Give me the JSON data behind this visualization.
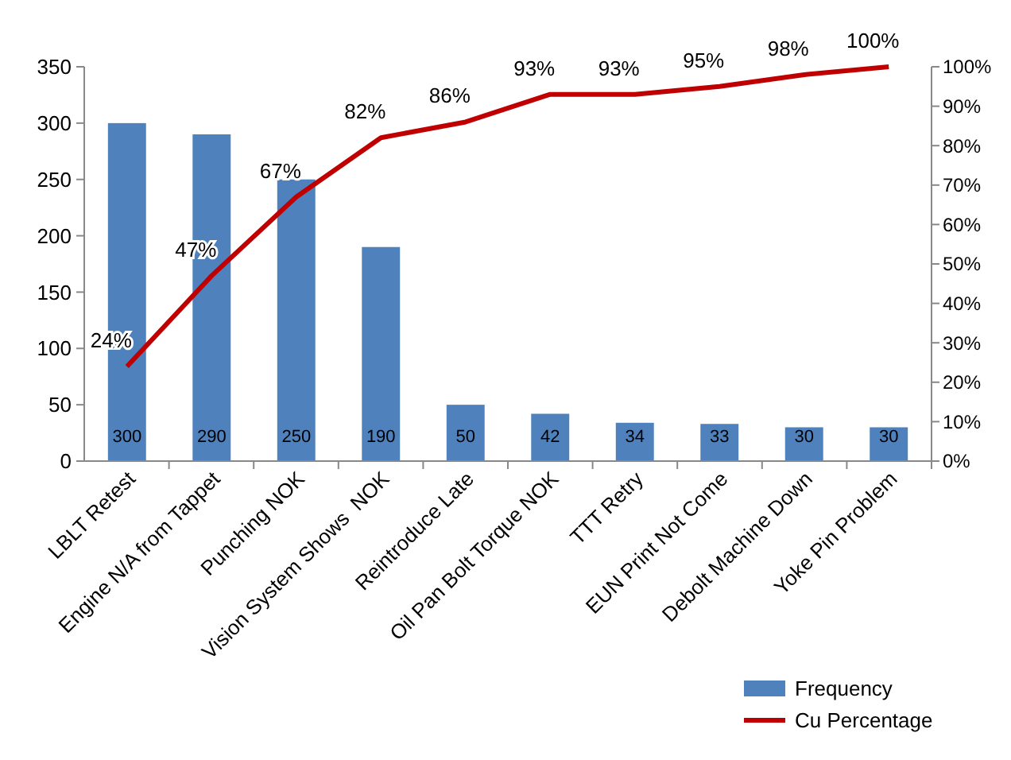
{
  "chart_data": {
    "type": "bar",
    "categories": [
      "LBLT Retest",
      "Engine N/A from Tappet",
      "Punching NOK",
      "Vision System Shows  NOK",
      "Reintroduce Late",
      "Oil Pan Bolt Torque NOK",
      "TTT Retry",
      "EUN Print Not Come",
      "Debolt Machine Down",
      "Yoke Pin Problem"
    ],
    "series": [
      {
        "name": "Frequency",
        "color": "#4f81bd",
        "values": [
          300,
          290,
          250,
          190,
          50,
          42,
          34,
          33,
          30,
          30
        ],
        "value_labels": [
          "300",
          "290",
          "250",
          "190",
          "50",
          "42",
          "34",
          "33",
          "30",
          "30"
        ]
      },
      {
        "name": "Cu Percentage",
        "type": "line",
        "axis": "y2",
        "color": "#c00000",
        "values": [
          24,
          47,
          67,
          82,
          86,
          93,
          93,
          95,
          98,
          100
        ],
        "value_labels": [
          "24%",
          "47%",
          "67%",
          "82%",
          "86%",
          "93%",
          "93%",
          "95%",
          "98%",
          "100%"
        ]
      }
    ],
    "ylim": [
      0,
      350
    ],
    "yticks": [
      0,
      50,
      100,
      150,
      200,
      250,
      300,
      350
    ],
    "y2lim": [
      0,
      100
    ],
    "y2ticks": [
      {
        "value": 0,
        "label": "0%"
      },
      {
        "value": 10,
        "label": "10%"
      },
      {
        "value": 20,
        "label": "20%"
      },
      {
        "value": 30,
        "label": "30%"
      },
      {
        "value": 40,
        "label": "40%"
      },
      {
        "value": 50,
        "label": "50%"
      },
      {
        "value": 60,
        "label": "60%"
      },
      {
        "value": 70,
        "label": "70%"
      },
      {
        "value": 80,
        "label": "80%"
      },
      {
        "value": 90,
        "label": "90%"
      },
      {
        "value": 100,
        "label": "100%"
      }
    ],
    "grid": false,
    "legend": "bottom right",
    "marker": "none",
    "line_style": "solid"
  }
}
